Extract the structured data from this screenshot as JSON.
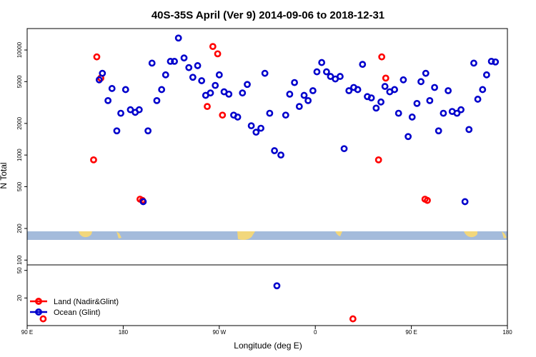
{
  "chart_data": {
    "type": "scatter",
    "title": "40S-35S April (Ver 9)   2014-09-06 to 2018-12-31",
    "xlabel": "Longitude (deg E)",
    "ylabel": "N Total",
    "x_ticks": [
      "90 E",
      "180",
      "90 W",
      "0",
      "90 E",
      "180"
    ],
    "upper_panel": {
      "scale": "log",
      "y_ticks": [
        "100",
        "200",
        "500",
        "1000",
        "2000",
        "5000",
        "10000"
      ],
      "ylim": [
        90,
        16000
      ]
    },
    "lower_panel": {
      "scale": "log",
      "y_ticks": [
        "20",
        "50"
      ],
      "ylim": [
        8,
        60
      ]
    },
    "legend": {
      "placement": "bottom-left"
    },
    "series": [
      {
        "name": "Land (Nadir&Glint)",
        "color": "#ff0000",
        "points": [
          [
            20,
            10
          ],
          [
            83,
            900
          ],
          [
            87,
            8600
          ],
          [
            92,
            5400
          ],
          [
            141,
            380
          ],
          [
            144,
            370
          ],
          [
            225,
            2900
          ],
          [
            232,
            10800
          ],
          [
            238,
            9200
          ],
          [
            244,
            2400
          ],
          [
            407,
            10
          ],
          [
            439,
            900
          ],
          [
            443,
            8600
          ],
          [
            448,
            5400
          ],
          [
            497,
            380
          ],
          [
            500,
            370
          ]
        ]
      },
      {
        "name": "Ocean (Glint)",
        "color": "#0000cc",
        "points": [
          [
            90,
            5200
          ],
          [
            94,
            6000
          ],
          [
            101,
            3300
          ],
          [
            106,
            4300
          ],
          [
            112,
            1700
          ],
          [
            117,
            2500
          ],
          [
            123,
            4200
          ],
          [
            129,
            2700
          ],
          [
            135,
            2550
          ],
          [
            140,
            2700
          ],
          [
            145,
            360
          ],
          [
            151,
            1700
          ],
          [
            156,
            7500
          ],
          [
            162,
            3300
          ],
          [
            168,
            4200
          ],
          [
            173,
            5800
          ],
          [
            179,
            7800
          ],
          [
            184,
            7800
          ],
          [
            189,
            13000
          ],
          [
            196,
            8400
          ],
          [
            202,
            6800
          ],
          [
            207,
            5500
          ],
          [
            213,
            7100
          ],
          [
            218,
            5100
          ],
          [
            223,
            3700
          ],
          [
            229,
            3900
          ],
          [
            235,
            4600
          ],
          [
            240,
            5800
          ],
          [
            246,
            4000
          ],
          [
            252,
            3800
          ],
          [
            258,
            2400
          ],
          [
            263,
            2300
          ],
          [
            269,
            3900
          ],
          [
            275,
            4700
          ],
          [
            280,
            1900
          ],
          [
            286,
            1650
          ],
          [
            292,
            1800
          ],
          [
            297,
            6000
          ],
          [
            303,
            2500
          ],
          [
            309,
            1100
          ],
          [
            312,
            30
          ],
          [
            317,
            1000
          ],
          [
            323,
            2400
          ],
          [
            328,
            3800
          ],
          [
            334,
            4900
          ],
          [
            340,
            2900
          ],
          [
            346,
            3700
          ],
          [
            351,
            3300
          ],
          [
            357,
            4100
          ],
          [
            362,
            6200
          ],
          [
            368,
            7600
          ],
          [
            374,
            6200
          ],
          [
            379,
            5600
          ],
          [
            385,
            5300
          ],
          [
            391,
            5600
          ],
          [
            396,
            1150
          ],
          [
            402,
            4100
          ],
          [
            408,
            4400
          ],
          [
            413,
            4200
          ],
          [
            419,
            7300
          ],
          [
            425,
            3600
          ],
          [
            430,
            3500
          ],
          [
            436,
            2800
          ],
          [
            442,
            3200
          ],
          [
            447,
            4500
          ],
          [
            453,
            4000
          ],
          [
            459,
            4200
          ],
          [
            464,
            2500
          ],
          [
            470,
            5200
          ],
          [
            476,
            1500
          ],
          [
            481,
            2300
          ],
          [
            487,
            3100
          ],
          [
            492,
            5000
          ],
          [
            498,
            6000
          ],
          [
            503,
            3300
          ],
          [
            509,
            4400
          ],
          [
            514,
            1700
          ],
          [
            520,
            2500
          ],
          [
            526,
            4100
          ],
          [
            531,
            2600
          ],
          [
            537,
            2500
          ],
          [
            542,
            2700
          ],
          [
            547,
            360
          ],
          [
            552,
            1750
          ],
          [
            558,
            7500
          ],
          [
            563,
            3400
          ],
          [
            569,
            4200
          ],
          [
            574,
            5800
          ],
          [
            580,
            7800
          ],
          [
            585,
            7700
          ]
        ]
      }
    ]
  }
}
